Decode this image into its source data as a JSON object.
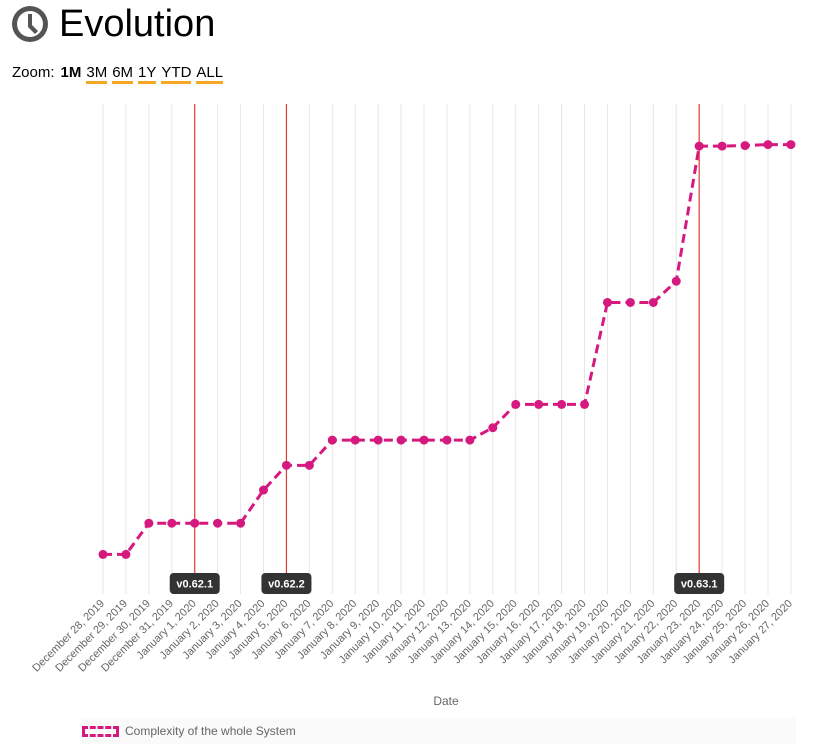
{
  "header": {
    "title": "Evolution",
    "icon": "clock-icon"
  },
  "zoom": {
    "label": "Zoom:",
    "options": [
      "1M",
      "3M",
      "6M",
      "1Y",
      "YTD",
      "ALL"
    ],
    "active": "1M"
  },
  "colors": {
    "series": "#d6197f",
    "release_line": "#e53935",
    "release_label_bg": "#333333",
    "zoom_underline": "#f5a623"
  },
  "chart_data": {
    "type": "line",
    "xlabel": "Date",
    "ylabel": "",
    "grid": "vertical",
    "legend_position": "bottom-left",
    "categories": [
      "December 28, 2019",
      "December 29, 2019",
      "December 30, 2019",
      "December 31, 2019",
      "January 1, 2020",
      "January 2, 2020",
      "January 3, 2020",
      "January 4, 2020",
      "January 5, 2020",
      "January 6, 2020",
      "January 7, 2020",
      "January 8, 2020",
      "January 9, 2020",
      "January 10, 2020",
      "January 11, 2020",
      "January 12, 2020",
      "January 13, 2020",
      "January 14, 2020",
      "January 15, 2020",
      "January 16, 2020",
      "January 17, 2020",
      "January 18, 2020",
      "January 19, 2020",
      "January 20, 2020",
      "January 21, 2020",
      "January 22, 2020",
      "January 23, 2020",
      "January 24, 2020",
      "January 25, 2020",
      "January 26, 2020",
      "January 27, 2020"
    ],
    "series": [
      {
        "name": "Complexity of the whole System",
        "values": [
          0,
          0,
          6.3,
          6.3,
          6.3,
          6.3,
          6.3,
          13.0,
          18.0,
          18.0,
          23.1,
          23.1,
          23.1,
          23.1,
          23.1,
          23.1,
          23.1,
          25.6,
          30.3,
          30.3,
          30.3,
          30.3,
          50.9,
          50.9,
          50.9,
          55.2,
          82.5,
          82.5,
          82.6,
          82.8,
          82.8
        ]
      }
    ],
    "ylim": [
      -8,
      91
    ],
    "releases": [
      {
        "label": "v0.62.1",
        "date": "January 1, 2020"
      },
      {
        "label": "v0.62.2",
        "date": "January 5, 2020"
      },
      {
        "label": "v0.63.1",
        "date": "January 23, 2020"
      }
    ]
  }
}
